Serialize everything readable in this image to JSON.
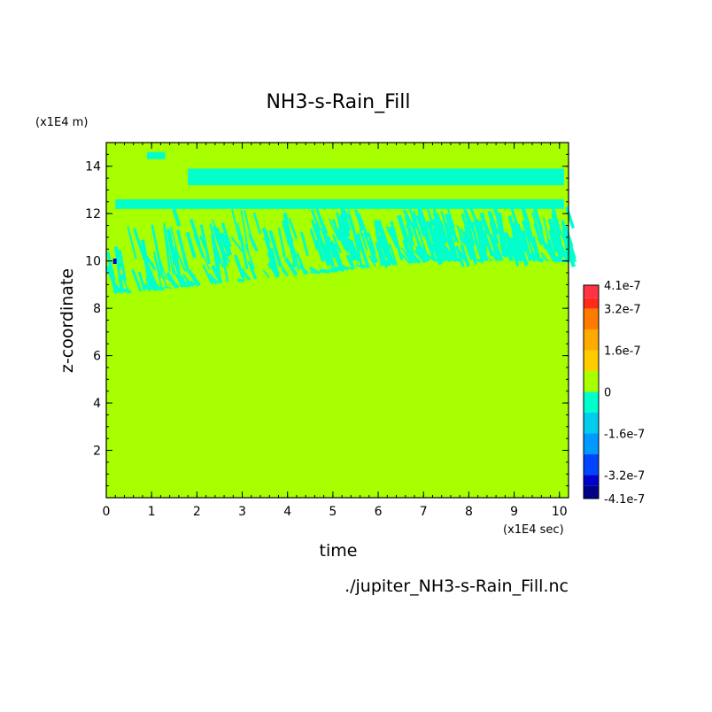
{
  "chart_data": {
    "type": "heatmap",
    "title": "NH3-s-Rain_Fill",
    "xlabel": "time",
    "ylabel": "z-coordinate",
    "x_unit": "(x1E4 sec)",
    "y_unit": "(x1E4 m)",
    "xlim": [
      0,
      10.2
    ],
    "ylim": [
      0,
      15
    ],
    "x_ticks": [
      0,
      1,
      2,
      3,
      4,
      5,
      6,
      7,
      8,
      9,
      10
    ],
    "y_ticks": [
      2,
      4,
      6,
      8,
      10,
      12,
      14
    ],
    "colorbar": {
      "labels": [
        "4.1e-7",
        "3.2e-7",
        "1.6e-7",
        "0",
        "-1.6e-7",
        "-3.2e-7",
        "-4.1e-7"
      ],
      "label_values": [
        4.1e-07,
        3.2e-07,
        1.6e-07,
        0,
        -1.6e-07,
        -3.2e-07,
        -4.1e-07
      ],
      "levels": [
        {
          "from": 3.6e-07,
          "to": 4.1e-07,
          "color": "#ff3344"
        },
        {
          "from": 3.2e-07,
          "to": 3.6e-07,
          "color": "#ff2a1a"
        },
        {
          "from": 2.4e-07,
          "to": 3.2e-07,
          "color": "#ff7a00"
        },
        {
          "from": 1.6e-07,
          "to": 2.4e-07,
          "color": "#ffaa00"
        },
        {
          "from": 8e-08,
          "to": 1.6e-07,
          "color": "#ffcc00"
        },
        {
          "from": 0,
          "to": 8e-08,
          "color": "#a8ff00"
        },
        {
          "from": -8e-08,
          "to": 0,
          "color": "#00ffcc"
        },
        {
          "from": -1.6e-07,
          "to": -8e-08,
          "color": "#00ccee"
        },
        {
          "from": -2.4e-07,
          "to": -1.6e-07,
          "color": "#0099ff"
        },
        {
          "from": -3.2e-07,
          "to": -2.4e-07,
          "color": "#0044ff"
        },
        {
          "from": -3.6e-07,
          "to": -3.2e-07,
          "color": "#0000cc"
        },
        {
          "from": -4.1e-07,
          "to": -3.6e-07,
          "color": "#000088"
        }
      ]
    },
    "background_color": "#a8ff00",
    "negative_color": "#00ffcc",
    "regions": [
      {
        "name": "upper-band",
        "t": [
          1.8,
          10.1
        ],
        "z": [
          13.2,
          13.9
        ]
      },
      {
        "name": "upper-band-2",
        "t": [
          0.2,
          10.1
        ],
        "z": [
          12.2,
          12.6
        ]
      },
      {
        "name": "streak-zone",
        "t": [
          0,
          10.2
        ],
        "z": [
          8.5,
          12.4
        ]
      },
      {
        "name": "top-blob",
        "t": [
          0.9,
          1.3
        ],
        "z": [
          14.3,
          14.6
        ]
      }
    ],
    "footer": "./jupiter_NH3-s-Rain_Fill.nc"
  }
}
